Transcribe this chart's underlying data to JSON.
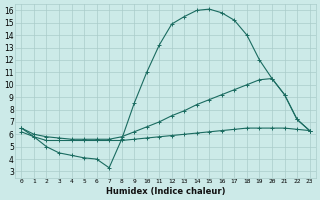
{
  "xlabel": "Humidex (Indice chaleur)",
  "ylabel": "",
  "bg_color": "#cceae8",
  "grid_color": "#aaccca",
  "line_color": "#1a6b60",
  "xlim": [
    -0.5,
    23.5
  ],
  "ylim": [
    2.5,
    16.5
  ],
  "xticks": [
    0,
    1,
    2,
    3,
    4,
    5,
    6,
    7,
    8,
    9,
    10,
    11,
    12,
    13,
    14,
    15,
    16,
    17,
    18,
    19,
    20,
    21,
    22,
    23
  ],
  "yticks": [
    3,
    4,
    5,
    6,
    7,
    8,
    9,
    10,
    11,
    12,
    13,
    14,
    15,
    16
  ],
  "line1_x": [
    0,
    1,
    2,
    3,
    4,
    5,
    6,
    7,
    8,
    9,
    10,
    11,
    12,
    13,
    14,
    15,
    16,
    17,
    18,
    19,
    20,
    21,
    22,
    23
  ],
  "line1_y": [
    6.5,
    5.8,
    5.0,
    4.5,
    4.3,
    4.1,
    4.0,
    3.3,
    5.6,
    8.5,
    11.0,
    13.2,
    14.9,
    15.5,
    16.0,
    16.1,
    15.8,
    15.2,
    14.0,
    12.0,
    10.5,
    9.2,
    7.2,
    6.3
  ],
  "line2_x": [
    0,
    1,
    2,
    3,
    4,
    5,
    6,
    7,
    8,
    9,
    10,
    11,
    12,
    13,
    14,
    15,
    16,
    17,
    18,
    19,
    20,
    21,
    22,
    23
  ],
  "line2_y": [
    6.5,
    6.0,
    5.8,
    5.7,
    5.6,
    5.6,
    5.6,
    5.6,
    5.8,
    6.2,
    6.6,
    7.0,
    7.5,
    7.9,
    8.4,
    8.8,
    9.2,
    9.6,
    10.0,
    10.4,
    10.5,
    9.2,
    7.2,
    6.3
  ],
  "line3_x": [
    0,
    1,
    2,
    3,
    4,
    5,
    6,
    7,
    8,
    9,
    10,
    11,
    12,
    13,
    14,
    15,
    16,
    17,
    18,
    19,
    20,
    21,
    22,
    23
  ],
  "line3_y": [
    6.2,
    5.8,
    5.5,
    5.5,
    5.5,
    5.5,
    5.5,
    5.5,
    5.5,
    5.6,
    5.7,
    5.8,
    5.9,
    6.0,
    6.1,
    6.2,
    6.3,
    6.4,
    6.5,
    6.5,
    6.5,
    6.5,
    6.4,
    6.3
  ],
  "marker": "+",
  "marker_size": 2.5,
  "linewidth": 0.8
}
